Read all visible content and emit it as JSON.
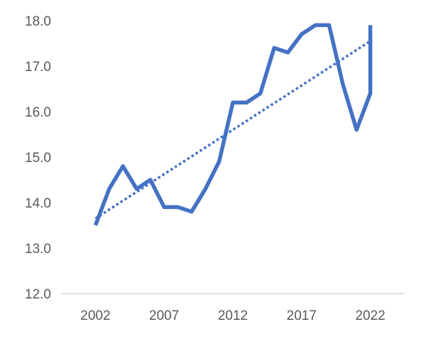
{
  "chart_data": {
    "type": "line",
    "title": "",
    "xlabel": "",
    "ylabel": "",
    "ylim": [
      12.0,
      18.0
    ],
    "yticks": [
      "12.0",
      "13.0",
      "14.0",
      "15.0",
      "16.0",
      "17.0",
      "18.0"
    ],
    "xticks": [
      "2002",
      "2007",
      "2012",
      "2017",
      "2022"
    ],
    "grid": false,
    "legend": "none",
    "x": [
      2002,
      2003,
      2004,
      2005,
      2006,
      2007,
      2008,
      2009,
      2010,
      2011,
      2012,
      2013,
      2014,
      2015,
      2016,
      2017,
      2018,
      2019,
      2020,
      2021,
      2022,
      2022
    ],
    "series": [
      {
        "values": [
          13.5,
          14.3,
          14.8,
          14.3,
          14.5,
          13.9,
          13.9,
          13.8,
          14.3,
          14.9,
          16.2,
          16.2,
          16.4,
          17.4,
          17.3,
          17.7,
          17.9,
          17.9,
          16.6,
          15.6,
          16.4,
          17.9
        ],
        "color": "#4472C4",
        "style": "solid"
      },
      {
        "trend": "linear",
        "start": [
          2002,
          13.65
        ],
        "end": [
          2022,
          17.55
        ],
        "color": "#4472C4",
        "style": "dotted"
      }
    ]
  }
}
